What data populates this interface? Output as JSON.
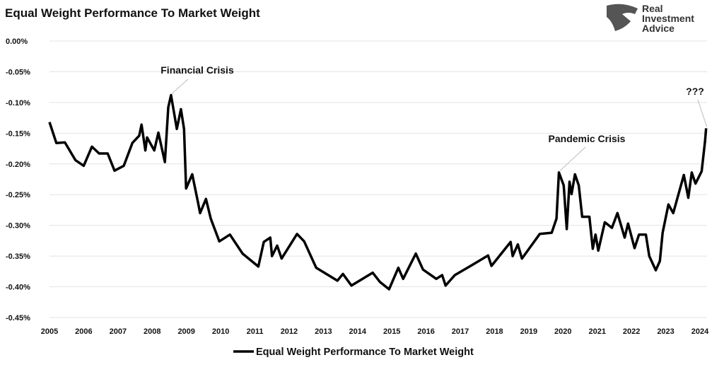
{
  "chart_data": {
    "type": "line",
    "title": "Equal Weight Performance To Market Weight",
    "xlabel": "",
    "ylabel": "",
    "xlim": [
      2005,
      2024.3
    ],
    "ylim": [
      -0.45,
      0.0
    ],
    "x_ticks": [
      "2005",
      "2006",
      "2007",
      "2008",
      "2009",
      "2010",
      "2011",
      "2012",
      "2013",
      "2014",
      "2015",
      "2016",
      "2017",
      "2018",
      "2019",
      "2020",
      "2021",
      "2022",
      "2023",
      "2024"
    ],
    "y_ticks": [
      "0.00%",
      "-0.05%",
      "-0.10%",
      "-0.15%",
      "-0.20%",
      "-0.25%",
      "-0.30%",
      "-0.35%",
      "-0.40%",
      "-0.45%"
    ],
    "grid": "horizontal",
    "legend": "bottom",
    "series": [
      {
        "name": "Equal Weight Performance To Market Weight",
        "color": "#000000",
        "points": [
          [
            2005.0,
            -0.132
          ],
          [
            2005.2,
            -0.166
          ],
          [
            2005.45,
            -0.165
          ],
          [
            2005.76,
            -0.194
          ],
          [
            2006.0,
            -0.203
          ],
          [
            2006.24,
            -0.172
          ],
          [
            2006.45,
            -0.183
          ],
          [
            2006.7,
            -0.183
          ],
          [
            2006.9,
            -0.211
          ],
          [
            2007.17,
            -0.203
          ],
          [
            2007.42,
            -0.166
          ],
          [
            2007.62,
            -0.154
          ],
          [
            2007.69,
            -0.136
          ],
          [
            2007.8,
            -0.178
          ],
          [
            2007.85,
            -0.157
          ],
          [
            2008.06,
            -0.178
          ],
          [
            2008.18,
            -0.149
          ],
          [
            2008.37,
            -0.197
          ],
          [
            2008.47,
            -0.108
          ],
          [
            2008.55,
            -0.088
          ],
          [
            2008.72,
            -0.143
          ],
          [
            2008.84,
            -0.111
          ],
          [
            2008.93,
            -0.143
          ],
          [
            2008.99,
            -0.24
          ],
          [
            2009.17,
            -0.217
          ],
          [
            2009.34,
            -0.263
          ],
          [
            2009.4,
            -0.28
          ],
          [
            2009.57,
            -0.257
          ],
          [
            2009.71,
            -0.289
          ],
          [
            2009.96,
            -0.326
          ],
          [
            2010.27,
            -0.315
          ],
          [
            2010.64,
            -0.346
          ],
          [
            2011.1,
            -0.367
          ],
          [
            2011.26,
            -0.327
          ],
          [
            2011.45,
            -0.32
          ],
          [
            2011.5,
            -0.35
          ],
          [
            2011.65,
            -0.333
          ],
          [
            2011.78,
            -0.354
          ],
          [
            2012.23,
            -0.314
          ],
          [
            2012.44,
            -0.326
          ],
          [
            2012.79,
            -0.369
          ],
          [
            2013.41,
            -0.39
          ],
          [
            2013.57,
            -0.379
          ],
          [
            2013.82,
            -0.398
          ],
          [
            2014.44,
            -0.377
          ],
          [
            2014.65,
            -0.392
          ],
          [
            2014.92,
            -0.404
          ],
          [
            2015.19,
            -0.369
          ],
          [
            2015.33,
            -0.387
          ],
          [
            2015.7,
            -0.346
          ],
          [
            2015.91,
            -0.372
          ],
          [
            2016.3,
            -0.387
          ],
          [
            2016.47,
            -0.381
          ],
          [
            2016.57,
            -0.398
          ],
          [
            2016.84,
            -0.381
          ],
          [
            2017.3,
            -0.366
          ],
          [
            2017.81,
            -0.349
          ],
          [
            2017.91,
            -0.366
          ],
          [
            2018.47,
            -0.327
          ],
          [
            2018.53,
            -0.35
          ],
          [
            2018.68,
            -0.331
          ],
          [
            2018.8,
            -0.354
          ],
          [
            2019.32,
            -0.314
          ],
          [
            2019.67,
            -0.312
          ],
          [
            2019.81,
            -0.289
          ],
          [
            2019.88,
            -0.214
          ],
          [
            2020.02,
            -0.235
          ],
          [
            2020.11,
            -0.306
          ],
          [
            2020.19,
            -0.229
          ],
          [
            2020.25,
            -0.249
          ],
          [
            2020.35,
            -0.217
          ],
          [
            2020.46,
            -0.235
          ],
          [
            2020.56,
            -0.286
          ],
          [
            2020.77,
            -0.286
          ],
          [
            2020.87,
            -0.338
          ],
          [
            2020.95,
            -0.315
          ],
          [
            2021.03,
            -0.341
          ],
          [
            2021.22,
            -0.295
          ],
          [
            2021.43,
            -0.304
          ],
          [
            2021.59,
            -0.28
          ],
          [
            2021.8,
            -0.32
          ],
          [
            2021.9,
            -0.297
          ],
          [
            2022.09,
            -0.337
          ],
          [
            2022.22,
            -0.315
          ],
          [
            2022.42,
            -0.315
          ],
          [
            2022.52,
            -0.35
          ],
          [
            2022.71,
            -0.373
          ],
          [
            2022.83,
            -0.358
          ],
          [
            2022.91,
            -0.312
          ],
          [
            2023.08,
            -0.266
          ],
          [
            2023.22,
            -0.28
          ],
          [
            2023.53,
            -0.218
          ],
          [
            2023.66,
            -0.255
          ],
          [
            2023.76,
            -0.214
          ],
          [
            2023.87,
            -0.232
          ],
          [
            2024.05,
            -0.212
          ],
          [
            2024.15,
            -0.163
          ],
          [
            2024.18,
            -0.142
          ]
        ]
      }
    ],
    "annotations": [
      {
        "text": "Financial Crisis",
        "x": 2008.55,
        "y": -0.088
      },
      {
        "text": "Pandemic Crisis",
        "x": 2019.88,
        "y": -0.214
      },
      {
        "text": "???",
        "x": 2024.18,
        "y": -0.142
      }
    ]
  },
  "logo": {
    "text": "Real Investment Advice"
  }
}
